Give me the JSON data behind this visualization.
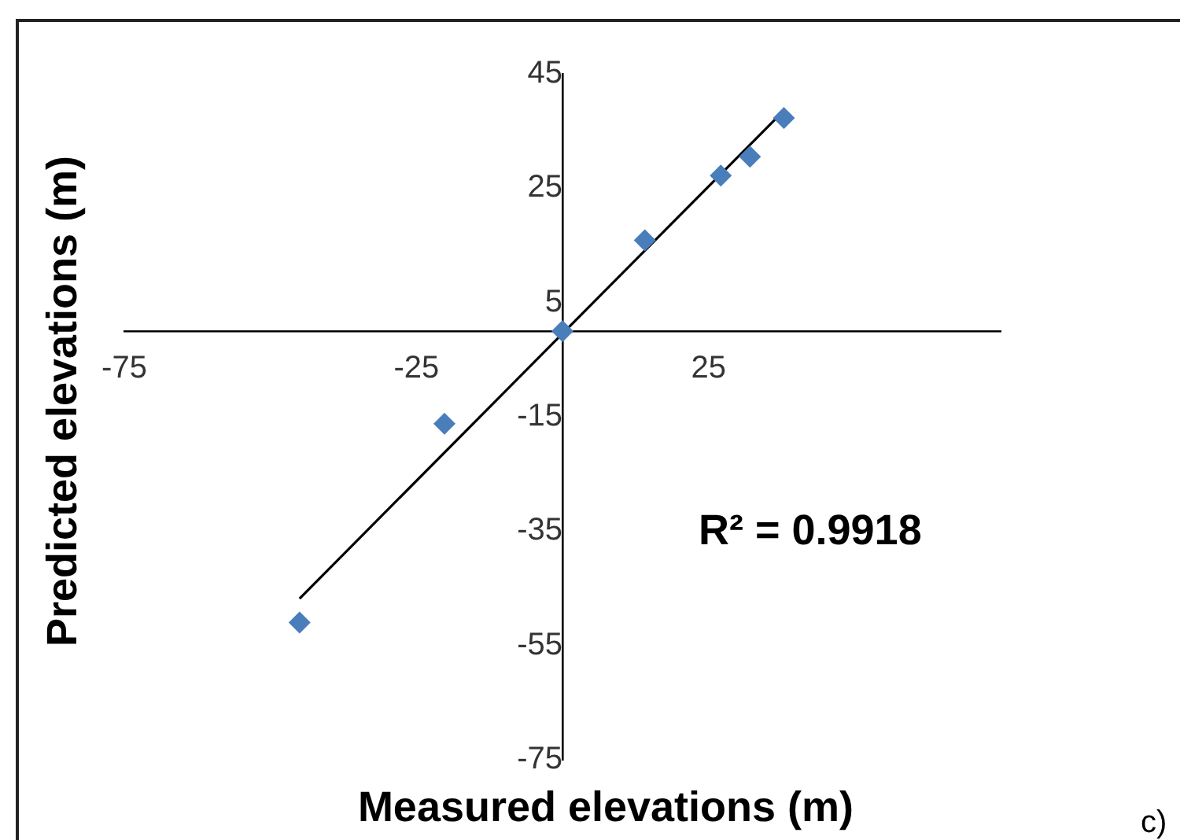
{
  "chart_data": {
    "type": "scatter",
    "xlabel": "Measured elevations (m)",
    "ylabel": "Predicted elevations (m)",
    "annotations": [
      "R² = 0.9918",
      "c)"
    ],
    "xlim": [
      -75,
      75
    ],
    "xticks": [
      -75,
      -25,
      25
    ],
    "ylim": [
      -75,
      45
    ],
    "yticks": [
      -75,
      -55,
      -35,
      -15,
      5,
      25,
      45
    ],
    "grid": false,
    "legend": false,
    "marker": "diamond",
    "series": [
      {
        "type": "scatter",
        "color": "#4a7ebb",
        "x": [
          -45,
          -20.2,
          0,
          14.1,
          27.1,
          32.1,
          37.9
        ],
        "values": [
          -51,
          -16.2,
          0,
          15.9,
          27.2,
          30.5,
          37.3
        ]
      },
      {
        "type": "line",
        "color": "#000000",
        "marker": "none",
        "x": [
          -45,
          37.9
        ],
        "values": [
          -46.8,
          38.6
        ]
      }
    ]
  }
}
